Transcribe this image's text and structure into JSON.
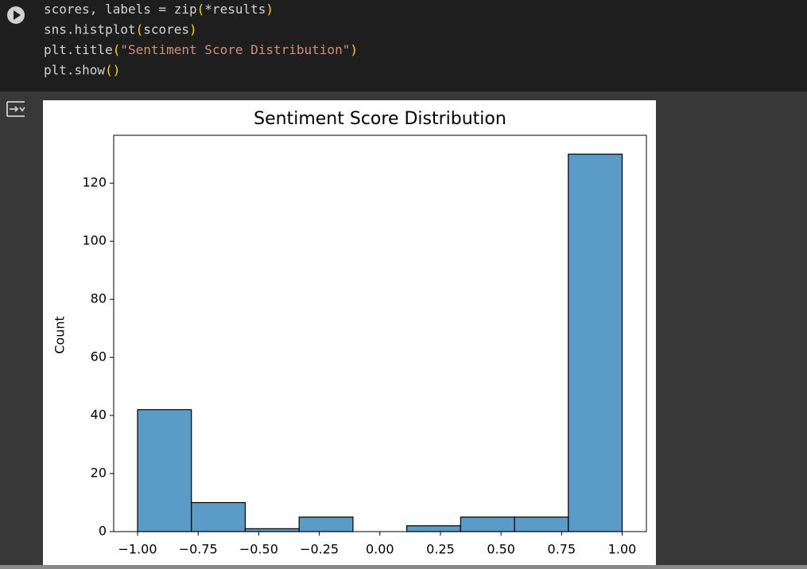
{
  "code": {
    "lines": [
      [
        {
          "text": "scores, labels = zip",
          "color": "#d4d4d4"
        },
        {
          "text": "(",
          "color": "#ffd700"
        },
        {
          "text": "*results",
          "color": "#d4d4d4"
        },
        {
          "text": ")",
          "color": "#ffd700"
        }
      ],
      [
        {
          "text": "sns.histplot",
          "color": "#d4d4d4"
        },
        {
          "text": "(",
          "color": "#ffd700"
        },
        {
          "text": "scores",
          "color": "#d4d4d4"
        },
        {
          "text": ")",
          "color": "#ffd700"
        }
      ],
      [
        {
          "text": "plt.title",
          "color": "#d4d4d4"
        },
        {
          "text": "(",
          "color": "#ffd700"
        },
        {
          "text": "\"Sentiment Score Distribution\"",
          "color": "#ce9178"
        },
        {
          "text": ")",
          "color": "#ffd700"
        }
      ],
      [
        {
          "text": "plt.show",
          "color": "#d4d4d4"
        },
        {
          "text": "()",
          "color": "#ffd700"
        }
      ]
    ]
  },
  "chart_data": {
    "type": "histogram",
    "title": "Sentiment Score Distribution",
    "y_label": "Count",
    "bins": [
      -1,
      -0.7778,
      -0.5556,
      -0.3333,
      -0.1111,
      0.1111,
      0.3333,
      0.5556,
      0.7778,
      1
    ],
    "values": [
      42,
      10,
      1,
      5,
      0,
      2,
      5,
      5,
      130
    ],
    "color": "#5a9bc8",
    "xlim": [
      -1.0985,
      1.1
    ],
    "ylim": [
      0,
      136.5
    ],
    "xticks": [
      {
        "value": -1,
        "label": "−1.00"
      },
      {
        "value": -0.75,
        "label": "−0.75"
      },
      {
        "value": -0.5,
        "label": "−0.50"
      },
      {
        "value": -0.25,
        "label": "−0.25"
      },
      {
        "value": 0,
        "label": "0.00"
      },
      {
        "value": 0.25,
        "label": "0.25"
      },
      {
        "value": 0.5,
        "label": "0.50"
      },
      {
        "value": 0.75,
        "label": "0.75"
      },
      {
        "value": 1,
        "label": "1.00"
      }
    ],
    "yticks": [
      0,
      20,
      40,
      60,
      80,
      100,
      120
    ]
  }
}
